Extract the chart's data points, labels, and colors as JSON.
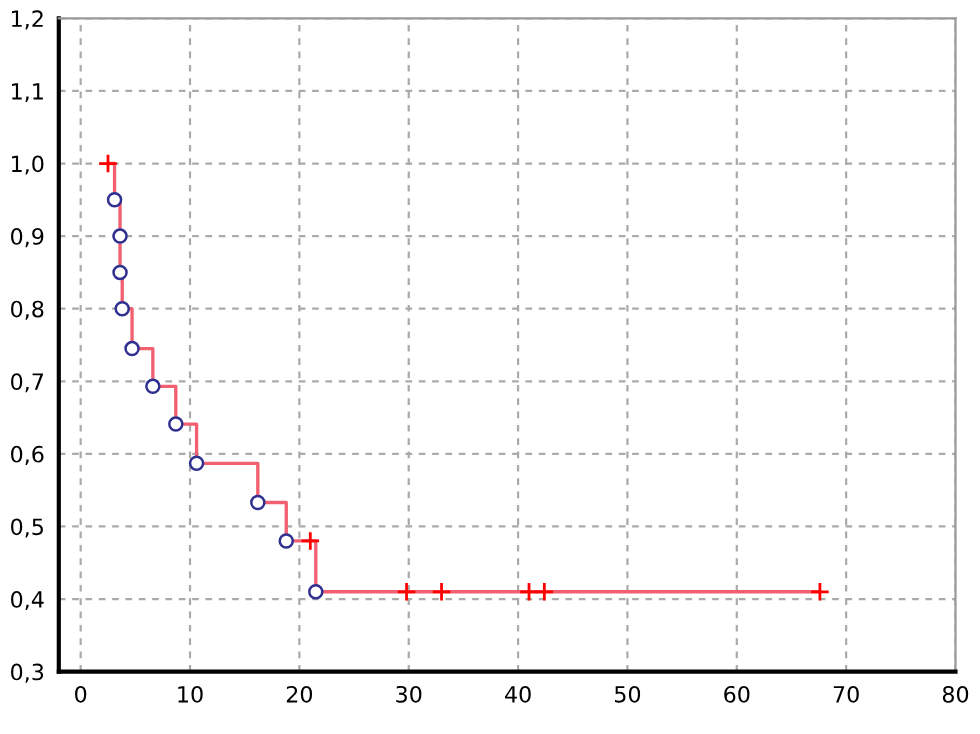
{
  "chart_data": {
    "type": "step",
    "xlim": [
      -2,
      80
    ],
    "xticks": [
      0,
      10,
      20,
      30,
      40,
      50,
      60,
      70,
      80
    ],
    "ylim": [
      0.3,
      1.2
    ],
    "yticks": [
      {
        "value": 0.3,
        "label": "0,3"
      },
      {
        "value": 0.4,
        "label": "0,4"
      },
      {
        "value": 0.5,
        "label": "0,5"
      },
      {
        "value": 0.6,
        "label": "0,6"
      },
      {
        "value": 0.7,
        "label": "0,7"
      },
      {
        "value": 0.8,
        "label": "0,8"
      },
      {
        "value": 0.9,
        "label": "0,9"
      },
      {
        "value": 1.0,
        "label": "1,0"
      },
      {
        "value": 1.1,
        "label": "1,1"
      },
      {
        "value": 1.2,
        "label": "1,2"
      }
    ],
    "grid": true,
    "legend": false,
    "series": [
      {
        "color": "#f06070",
        "marker": "none",
        "x": [
          2.5,
          3.1,
          3.6,
          3.6,
          3.8,
          4.7,
          6.6,
          8.7,
          10.6,
          16.2,
          18.8,
          21.5,
          67.6
        ],
        "values": [
          1.0,
          0.95,
          0.9,
          0.85,
          0.8,
          0.745,
          0.693,
          0.641,
          0.587,
          0.533,
          0.48,
          0.41,
          0.41
        ]
      },
      {
        "type": "scatter",
        "color": "#303090",
        "marker": "circle",
        "x": [
          3.1,
          3.6,
          3.6,
          3.8,
          4.7,
          6.6,
          8.7,
          10.6,
          16.2,
          18.8,
          21.5
        ],
        "values": [
          0.95,
          0.9,
          0.85,
          0.8,
          0.745,
          0.693,
          0.641,
          0.587,
          0.533,
          0.48,
          0.41
        ]
      },
      {
        "type": "scatter",
        "color": "#ff0000",
        "marker": "cross",
        "x": [
          2.5,
          21.0,
          29.8,
          33.0,
          41.0,
          42.4,
          67.6
        ],
        "values": [
          1.0,
          0.48,
          0.41,
          0.41,
          0.41,
          0.41,
          0.41
        ]
      }
    ]
  }
}
